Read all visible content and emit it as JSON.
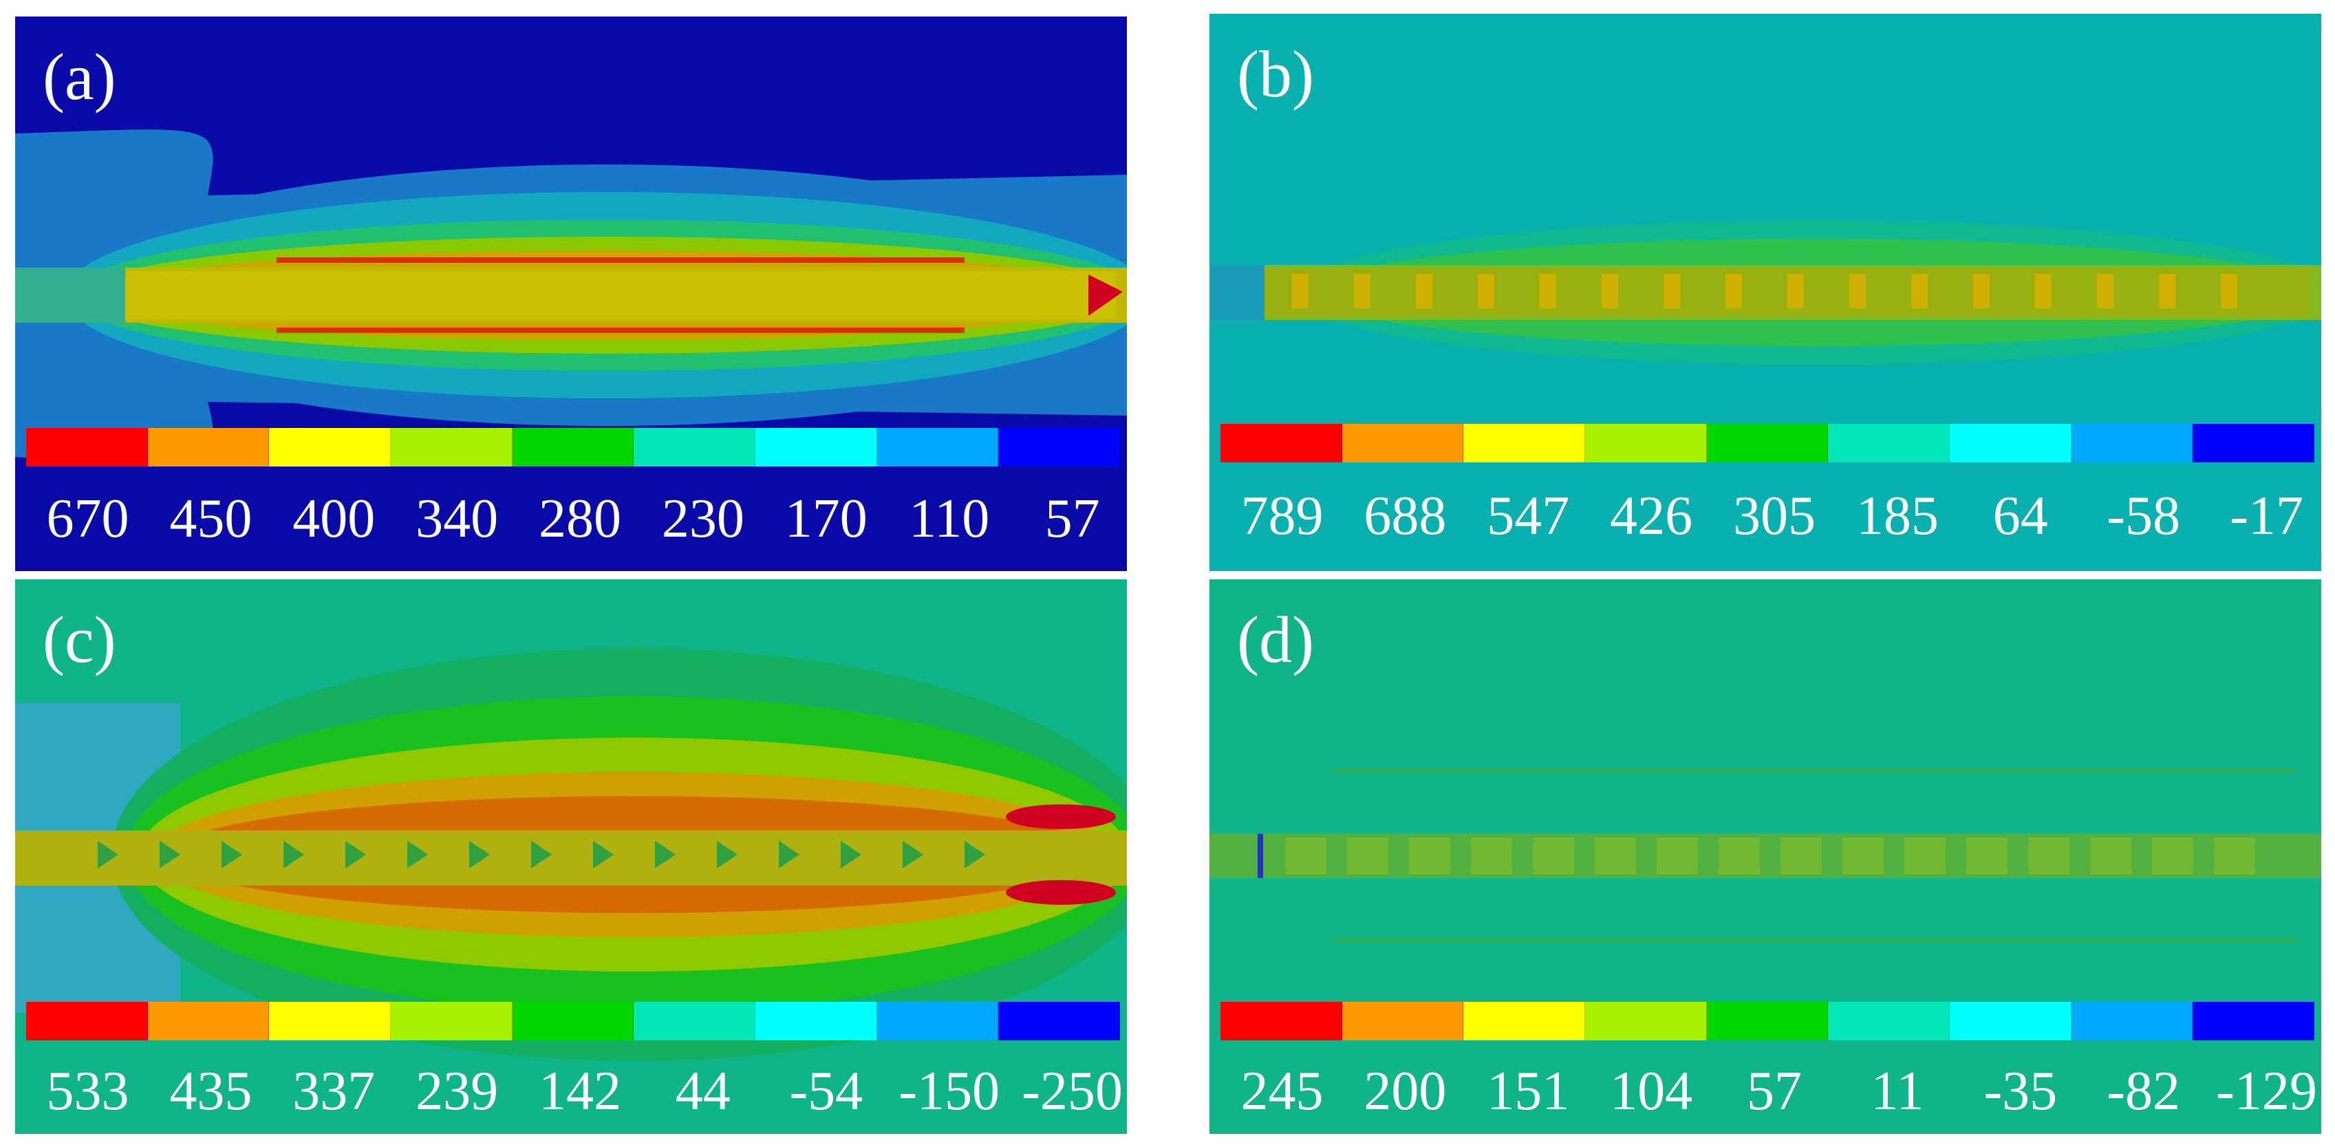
{
  "colormap": [
    "#ff0000",
    "#ff9900",
    "#ffff00",
    "#a6f200",
    "#00d800",
    "#00e8b8",
    "#00ffff",
    "#00a8ff",
    "#0000ff"
  ],
  "panels": {
    "a": {
      "label": "(a)",
      "ticks": [
        "670",
        "450",
        "400",
        "340",
        "280",
        "230",
        "170",
        "110",
        "57"
      ],
      "background": "#0a0aa8"
    },
    "b": {
      "label": "(b)",
      "ticks": [
        "789",
        "688",
        "547",
        "426",
        "305",
        "185",
        "64",
        "-58",
        "-17"
      ],
      "background": "#08b0b0"
    },
    "c": {
      "label": "(c)",
      "ticks": [
        "533",
        "435",
        "337",
        "239",
        "142",
        "44",
        "-54",
        "-150",
        "-250"
      ],
      "background": "#10b48a"
    },
    "d": {
      "label": "(d)",
      "ticks": [
        "245",
        "200",
        "151",
        "104",
        "57",
        "11",
        "-35",
        "-82",
        "-129"
      ],
      "background": "#10b48a"
    }
  }
}
